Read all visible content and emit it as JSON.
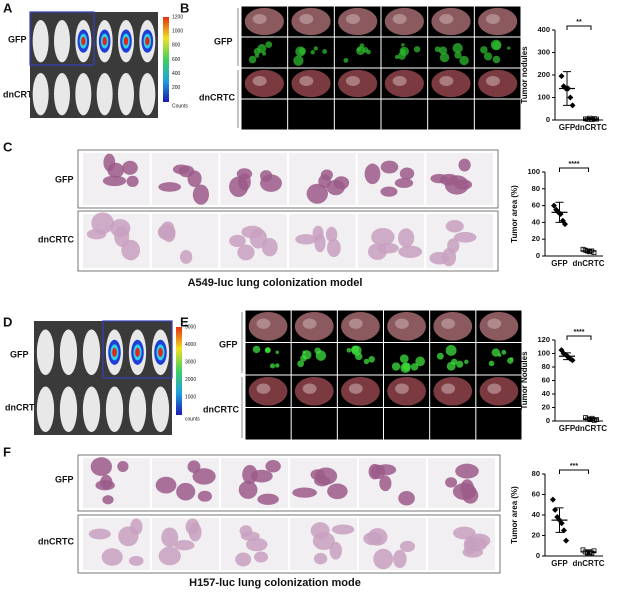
{
  "panels": {
    "A": {
      "letter": "A",
      "rows": [
        "GFP",
        "dnCRTC"
      ],
      "colorbar_ticks": [
        1200,
        1000,
        800,
        600,
        400,
        200
      ],
      "colorbar_unit": "Counts"
    },
    "B": {
      "letter": "B",
      "rows": [
        "GFP",
        "dnCRTC"
      ]
    },
    "C": {
      "letter": "C",
      "rows": [
        "GFP",
        "dnCRTC"
      ]
    },
    "D": {
      "letter": "D",
      "rows": [
        "GFP",
        "dnCRTC"
      ],
      "colorbar_ticks": [
        5000,
        4000,
        3000,
        2000,
        1000
      ],
      "colorbar_unit": "counts"
    },
    "E": {
      "letter": "E",
      "rows": [
        "GFP",
        "dnCRTC"
      ]
    },
    "F": {
      "letter": "F",
      "rows": [
        "GFP",
        "dnCRTC"
      ]
    }
  },
  "captions": [
    "A549-luc lung colonization model",
    "H157-luc lung colonization mode"
  ],
  "chart_data": [
    {
      "type": "dot",
      "y_label": "Tumor nodules",
      "categories": [
        "GFP",
        "dnCRTC"
      ],
      "points": [
        [
          195,
          150,
          140,
          140,
          100,
          65
        ],
        [
          5,
          3,
          8,
          2,
          6,
          4
        ]
      ],
      "means": [
        140,
        5
      ],
      "errors": [
        75,
        3
      ],
      "ylim": [
        0,
        400
      ],
      "yticks": [
        0,
        100,
        200,
        300,
        400
      ],
      "significance": "**"
    },
    {
      "type": "dot",
      "y_label": "Tumor area (%)",
      "categories": [
        "GFP",
        "dnCRTC"
      ],
      "points": [
        [
          60,
          55,
          52,
          50,
          42,
          38
        ],
        [
          8,
          7,
          6,
          5,
          6,
          4
        ]
      ],
      "means": [
        52,
        6
      ],
      "errors": [
        12,
        2
      ],
      "ylim": [
        0,
        100
      ],
      "yticks": [
        0,
        20,
        40,
        60,
        80,
        100
      ],
      "significance": "****"
    },
    {
      "type": "dot",
      "y_label": "Tumor Nodules",
      "categories": [
        "GFP",
        "dnCRTC"
      ],
      "points": [
        [
          105,
          100,
          98,
          95,
          92,
          90
        ],
        [
          5,
          3,
          2,
          4,
          1,
          2
        ]
      ],
      "means": [
        96,
        3
      ],
      "errors": [
        5,
        2
      ],
      "ylim": [
        0,
        120
      ],
      "yticks": [
        0,
        20,
        40,
        60,
        80,
        100,
        120
      ],
      "significance": "****"
    },
    {
      "type": "dot",
      "y_label": "Tumor area (%)",
      "categories": [
        "GFP",
        "dnCRTC"
      ],
      "points": [
        [
          55,
          45,
          38,
          35,
          32,
          25,
          15
        ],
        [
          6,
          4,
          3,
          2,
          3,
          5
        ]
      ],
      "means": [
        35,
        4
      ],
      "errors": [
        12,
        2
      ],
      "ylim": [
        0,
        80
      ],
      "yticks": [
        0,
        20,
        40,
        60,
        80
      ],
      "significance": "***"
    }
  ]
}
